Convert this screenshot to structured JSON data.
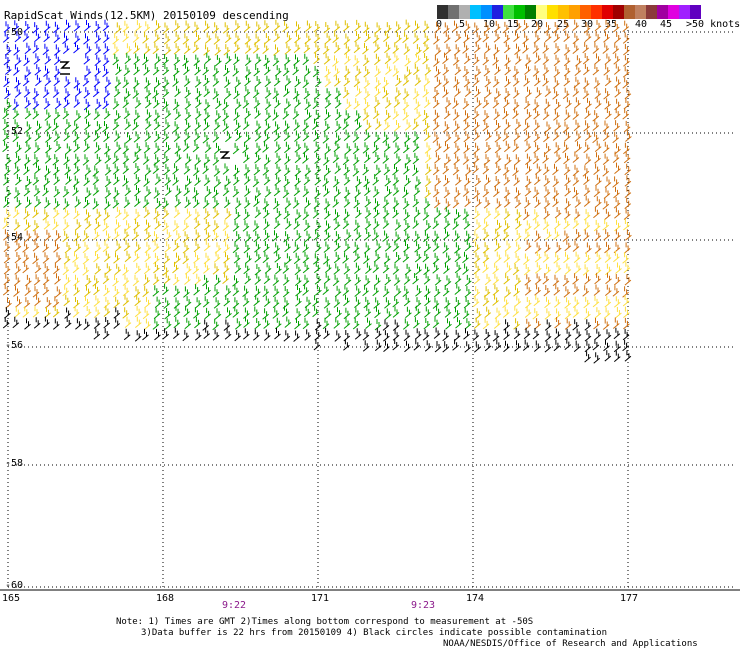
{
  "title": "RapidScat Winds(12.5KM) 20150109 descending",
  "colorbar": {
    "labels": [
      "0",
      "5",
      "10",
      "15",
      "20",
      "25",
      "30",
      "35",
      "40",
      "45",
      ">50 knots"
    ],
    "colors": [
      "#303030",
      "#707070",
      "#b0b0b0",
      "#00c0ff",
      "#0090ff",
      "#2020e0",
      "#40e040",
      "#00c000",
      "#008000",
      "#ffff80",
      "#ffe000",
      "#ffc000",
      "#ffa000",
      "#ff6000",
      "#ff3000",
      "#e00000",
      "#a00000",
      "#b06030",
      "#c08060",
      "#8b3a3a",
      "#a000a0",
      "#e000e0",
      "#a020ff",
      "#6000c0"
    ]
  },
  "map": {
    "lat_labels": [
      "-50",
      "-52",
      "-54",
      "-56",
      "-58",
      "-60"
    ],
    "lon_labels": [
      "165",
      "168",
      "171",
      "174",
      "177"
    ],
    "time_labels": [
      "9:22",
      "9:23"
    ]
  },
  "notes": {
    "line1": "Note: 1) Times are GMT 2)Times along bottom correspond to measurement at -50S",
    "line2": "3)Data buffer is 22 hrs from 20150109 4) Black circles indicate possible contamination",
    "line3": "NOAA/NESDIS/Office of Research and Applications"
  },
  "colors": {
    "calm": "#000000",
    "light": "#0000ff",
    "moderate": "#00a000",
    "fresh": "#e0c000",
    "pale": "#ffe040",
    "strong": "#d07010"
  }
}
